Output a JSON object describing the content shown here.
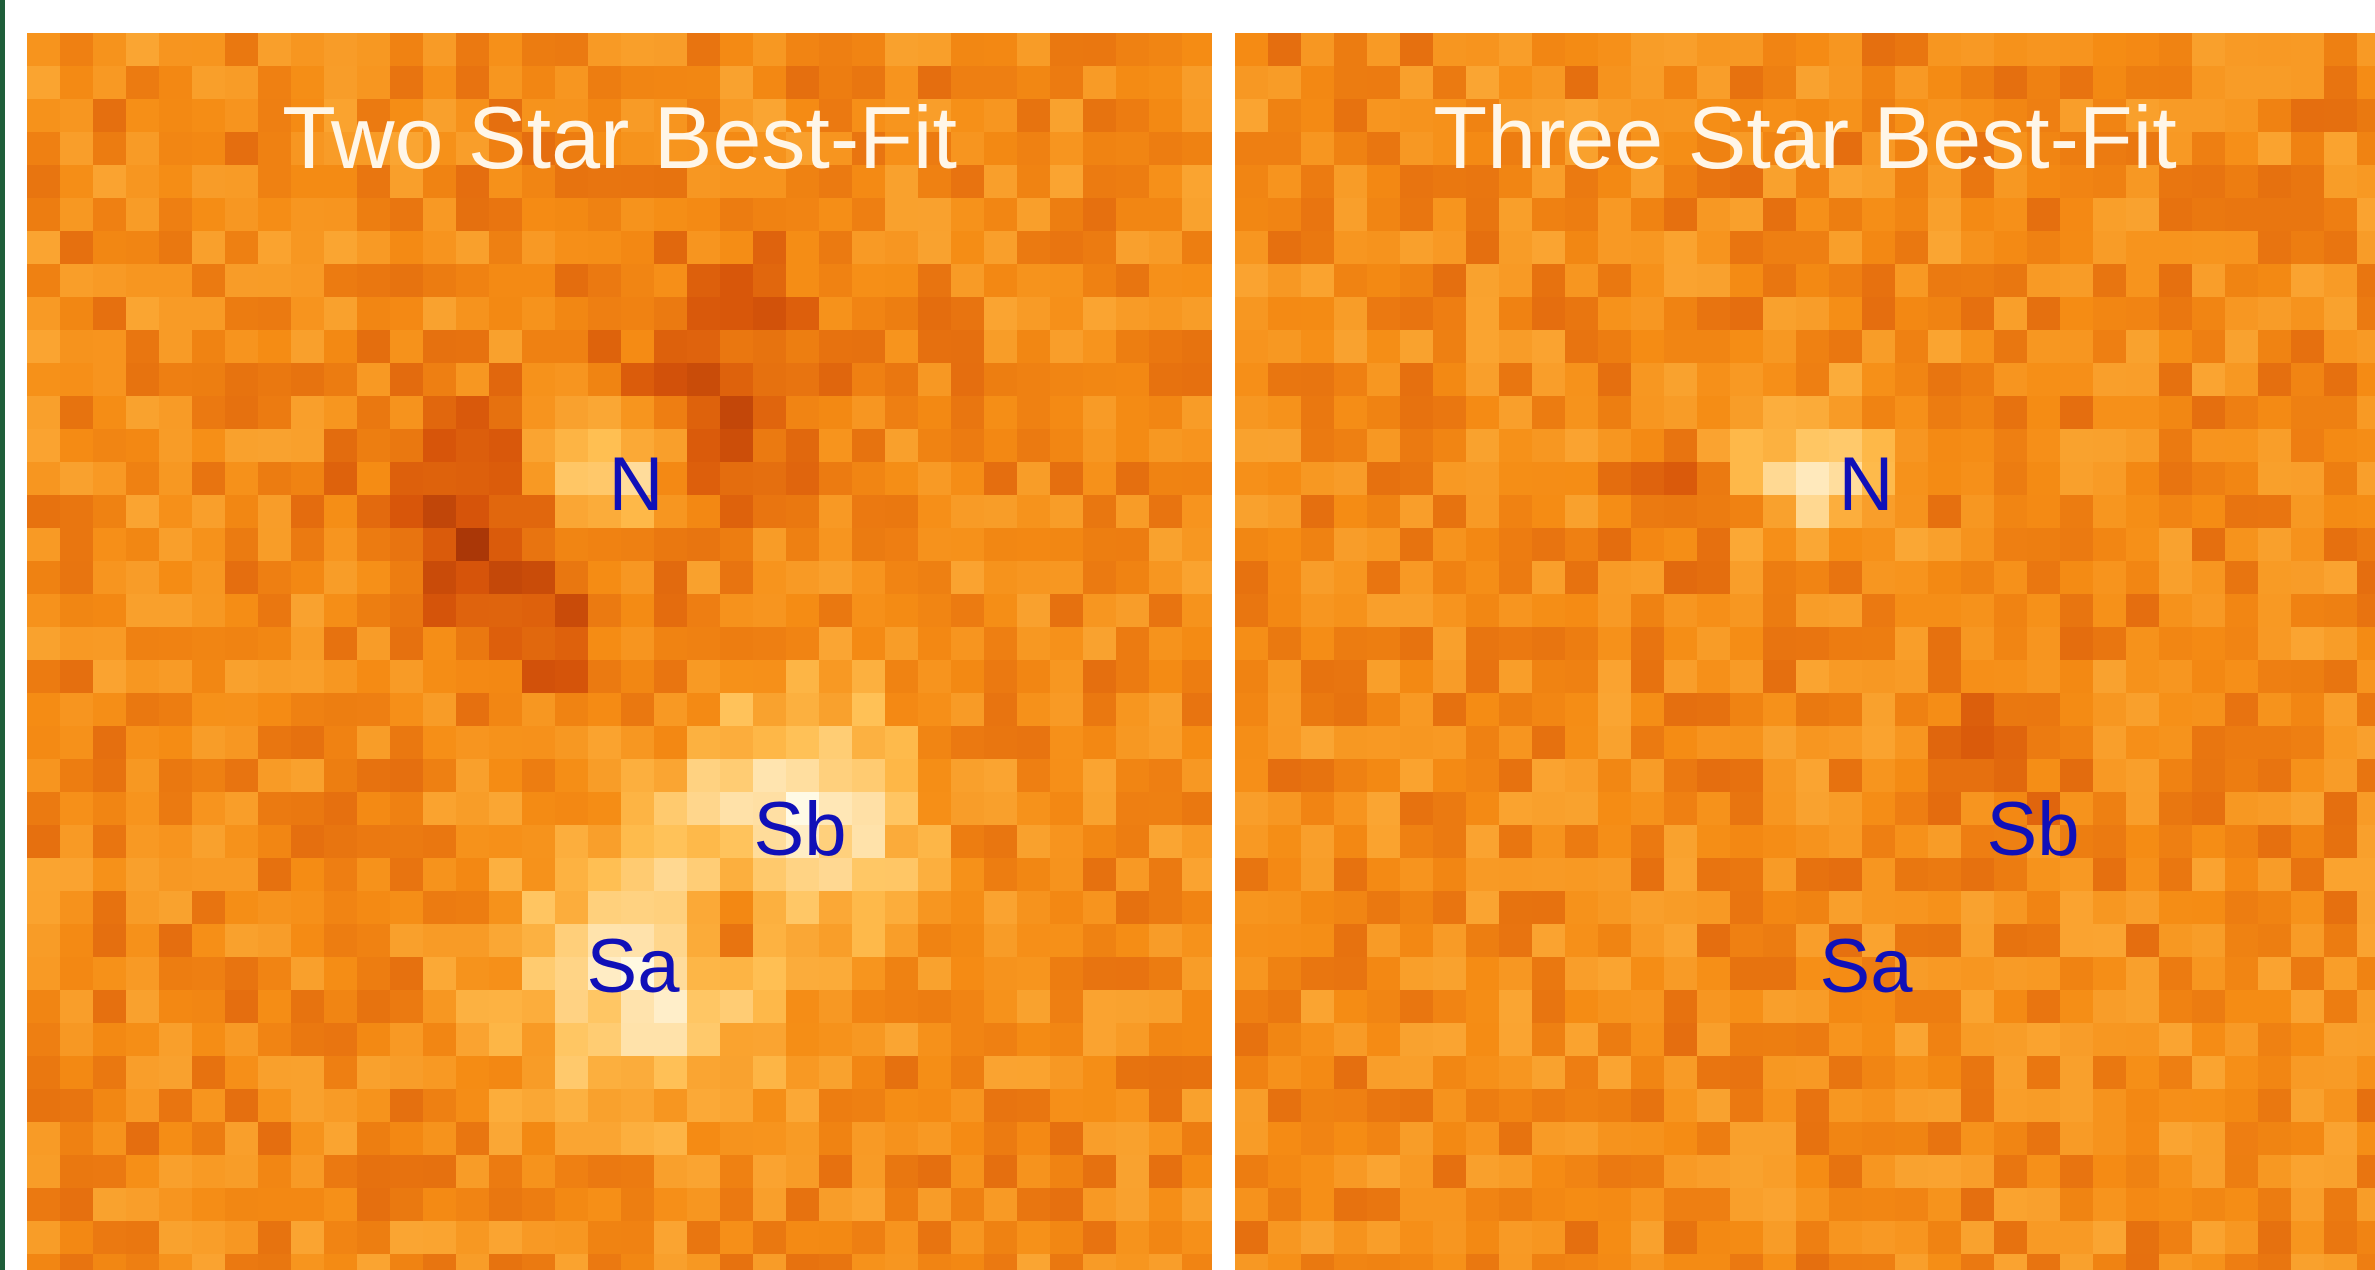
{
  "panels": [
    {
      "title": "Two Star Best-Fit",
      "labels": [
        "N",
        "Sb",
        "Sa"
      ]
    },
    {
      "title": "Three Star Best-Fit",
      "labels": [
        "N",
        "Sb",
        "Sa"
      ]
    }
  ]
}
